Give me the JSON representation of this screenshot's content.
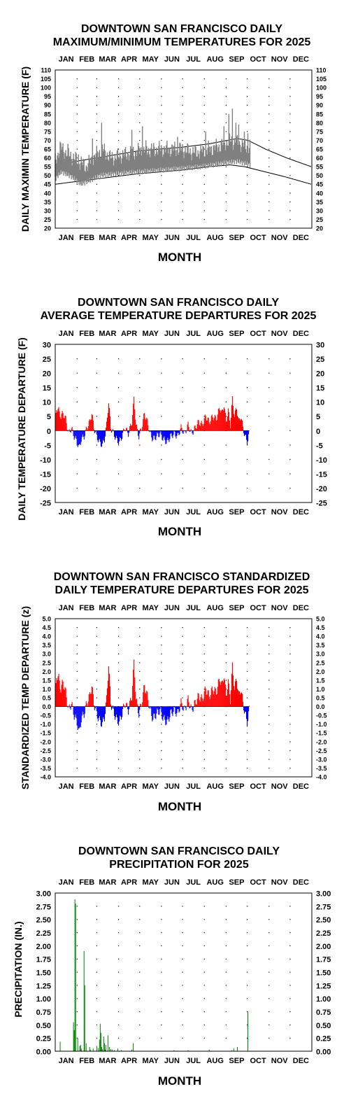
{
  "chart_data": [
    {
      "id": "maxmin",
      "type": "line",
      "title_line1": "DOWNTOWN SAN FRANCISCO DAILY",
      "title_line2": "MAXIMUM/MINIMUM TEMPERATURES FOR 2025",
      "xlabel": "MONTH",
      "ylabel": "DAILY MAXIMIN TEMPERATURE (F)",
      "months": [
        "JAN",
        "FEB",
        "MAR",
        "APR",
        "MAY",
        "JUN",
        "JUL",
        "AUG",
        "SEP",
        "OCT",
        "NOV",
        "DEC"
      ],
      "ylim": [
        20,
        110
      ],
      "yticks": [
        "110",
        "105",
        "100",
        "95",
        "90",
        "85",
        "80",
        "75",
        "70",
        "65",
        "60",
        "55",
        "50",
        "45",
        "40",
        "35",
        "30",
        "25",
        "20"
      ],
      "normal_max_anchors": [
        [
          1,
          56
        ],
        [
          60,
          60
        ],
        [
          120,
          64
        ],
        [
          180,
          66
        ],
        [
          220,
          68
        ],
        [
          260,
          71
        ],
        [
          275,
          70
        ],
        [
          300,
          65
        ],
        [
          330,
          60
        ],
        [
          365,
          55
        ]
      ],
      "normal_min_anchors": [
        [
          1,
          45
        ],
        [
          60,
          48
        ],
        [
          120,
          51
        ],
        [
          180,
          53
        ],
        [
          220,
          55
        ],
        [
          250,
          56
        ],
        [
          270,
          55
        ],
        [
          300,
          52
        ],
        [
          330,
          49
        ],
        [
          365,
          45
        ]
      ],
      "observed_max_anchors": [
        [
          1,
          58
        ],
        [
          8,
          66
        ],
        [
          20,
          62
        ],
        [
          35,
          58
        ],
        [
          45,
          55
        ],
        [
          55,
          60
        ],
        [
          68,
          65
        ],
        [
          80,
          60
        ],
        [
          100,
          62
        ],
        [
          120,
          64
        ],
        [
          150,
          65
        ],
        [
          180,
          65
        ],
        [
          200,
          63
        ],
        [
          230,
          66
        ],
        [
          250,
          70
        ],
        [
          265,
          68
        ],
        [
          278,
          66
        ]
      ],
      "observed_min_anchors": [
        [
          1,
          48
        ],
        [
          10,
          52
        ],
        [
          25,
          49
        ],
        [
          38,
          45
        ],
        [
          50,
          47
        ],
        [
          65,
          50
        ],
        [
          90,
          51
        ],
        [
          120,
          52
        ],
        [
          150,
          53
        ],
        [
          180,
          54
        ],
        [
          210,
          55
        ],
        [
          240,
          57
        ],
        [
          260,
          58
        ],
        [
          278,
          56
        ]
      ],
      "observed_spikes": [
        [
          19,
          68
        ],
        [
          34,
          62
        ],
        [
          54,
          71
        ],
        [
          67,
          80
        ],
        [
          110,
          76
        ],
        [
          125,
          78
        ],
        [
          130,
          70
        ],
        [
          175,
          72
        ],
        [
          215,
          75
        ],
        [
          241,
          78
        ],
        [
          248,
          85
        ],
        [
          253,
          88
        ],
        [
          258,
          80
        ],
        [
          262,
          79
        ],
        [
          270,
          75
        ],
        [
          275,
          74
        ]
      ],
      "observed_through_day": 278
    },
    {
      "id": "departures",
      "type": "bar",
      "title_line1": "DOWNTOWN SAN FRANCISCO DAILY",
      "title_line2": "AVERAGE TEMPERATURE DEPARTURES FOR 2025",
      "xlabel": "MONTH",
      "ylabel": "DAILY TEMPERATURE DEPARTURE (F)",
      "months": [
        "JAN",
        "FEB",
        "MAR",
        "APR",
        "MAY",
        "JUN",
        "JUL",
        "AUG",
        "SEP",
        "OCT",
        "NOV",
        "DEC"
      ],
      "ylim": [
        -25,
        30
      ],
      "yticks": [
        "30",
        "25",
        "20",
        "15",
        "10",
        "5",
        "0",
        "-5",
        "-10",
        "-15",
        "-20",
        "-25"
      ],
      "positive_color": "#ff0000",
      "negative_color": "#0000ff",
      "anchors": [
        [
          1,
          3
        ],
        [
          3,
          8
        ],
        [
          6,
          7
        ],
        [
          9,
          5
        ],
        [
          12,
          6
        ],
        [
          16,
          4
        ],
        [
          20,
          -1
        ],
        [
          24,
          1
        ],
        [
          28,
          -2
        ],
        [
          32,
          -4
        ],
        [
          35,
          -6
        ],
        [
          38,
          -3
        ],
        [
          42,
          -2
        ],
        [
          46,
          1
        ],
        [
          50,
          3
        ],
        [
          53,
          6
        ],
        [
          56,
          1
        ],
        [
          60,
          -2
        ],
        [
          64,
          -4
        ],
        [
          68,
          -5
        ],
        [
          71,
          -3
        ],
        [
          74,
          2
        ],
        [
          77,
          10
        ],
        [
          80,
          1
        ],
        [
          84,
          -1
        ],
        [
          88,
          -3
        ],
        [
          92,
          -4
        ],
        [
          96,
          -2
        ],
        [
          100,
          1
        ],
        [
          105,
          -1
        ],
        [
          110,
          3
        ],
        [
          113,
          11
        ],
        [
          116,
          2
        ],
        [
          120,
          -2
        ],
        [
          124,
          1
        ],
        [
          128,
          6
        ],
        [
          132,
          3
        ],
        [
          136,
          -1
        ],
        [
          140,
          -3
        ],
        [
          145,
          -2
        ],
        [
          150,
          -1
        ],
        [
          155,
          -3
        ],
        [
          160,
          -4
        ],
        [
          165,
          -2
        ],
        [
          170,
          -1
        ],
        [
          175,
          -2
        ],
        [
          180,
          1
        ],
        [
          185,
          -1
        ],
        [
          190,
          2
        ],
        [
          195,
          -1
        ],
        [
          200,
          1
        ],
        [
          205,
          3
        ],
        [
          210,
          2
        ],
        [
          215,
          5
        ],
        [
          220,
          3
        ],
        [
          225,
          5
        ],
        [
          230,
          4
        ],
        [
          235,
          8
        ],
        [
          238,
          6
        ],
        [
          241,
          9
        ],
        [
          244,
          3
        ],
        [
          247,
          7
        ],
        [
          250,
          2
        ],
        [
          253,
          11
        ],
        [
          256,
          5
        ],
        [
          259,
          8
        ],
        [
          262,
          3
        ],
        [
          265,
          5
        ],
        [
          268,
          1
        ],
        [
          271,
          -2
        ],
        [
          274,
          -4
        ],
        [
          277,
          -1
        ]
      ]
    },
    {
      "id": "standardized",
      "type": "bar",
      "title_line1": "DOWNTOWN SAN FRANCISCO STANDARDIZED",
      "title_line2": "DAILY TEMPERATURE DEPARTURES FOR 2025",
      "xlabel": "MONTH",
      "ylabel": "STANDARDIZED TEMP DEPARTURE (z)",
      "months": [
        "JAN",
        "FEB",
        "MAR",
        "APR",
        "MAY",
        "JUN",
        "JUL",
        "AUG",
        "SEP",
        "OCT",
        "NOV",
        "DEC"
      ],
      "ylim": [
        -4.0,
        5.0
      ],
      "yticks": [
        "5.0",
        "4.5",
        "4.0",
        "3.5",
        "3.0",
        "2.5",
        "2.0",
        "1.5",
        "1.0",
        "0.5",
        "0.0",
        "-0.5",
        "-1.0",
        "-1.5",
        "-2.0",
        "-2.5",
        "-3.0",
        "-3.5",
        "-4.0"
      ],
      "positive_color": "#ff0000",
      "negative_color": "#0000ff",
      "anchors": [
        [
          1,
          0.6
        ],
        [
          3,
          1.8
        ],
        [
          6,
          1.6
        ],
        [
          9,
          1.0
        ],
        [
          12,
          1.4
        ],
        [
          16,
          0.8
        ],
        [
          20,
          -0.2
        ],
        [
          24,
          0.2
        ],
        [
          28,
          -0.5
        ],
        [
          32,
          -0.9
        ],
        [
          35,
          -1.5
        ],
        [
          38,
          -0.7
        ],
        [
          42,
          -0.4
        ],
        [
          46,
          0.2
        ],
        [
          50,
          0.6
        ],
        [
          53,
          1.2
        ],
        [
          56,
          0.2
        ],
        [
          60,
          -0.4
        ],
        [
          64,
          -0.8
        ],
        [
          68,
          -1.0
        ],
        [
          71,
          -0.6
        ],
        [
          74,
          0.4
        ],
        [
          77,
          2.4
        ],
        [
          80,
          0.2
        ],
        [
          84,
          -0.3
        ],
        [
          88,
          -0.7
        ],
        [
          92,
          -0.9
        ],
        [
          96,
          -0.4
        ],
        [
          100,
          0.2
        ],
        [
          105,
          -0.2
        ],
        [
          110,
          0.6
        ],
        [
          113,
          2.5
        ],
        [
          116,
          0.4
        ],
        [
          120,
          -0.4
        ],
        [
          124,
          0.2
        ],
        [
          128,
          1.2
        ],
        [
          132,
          0.6
        ],
        [
          136,
          -0.2
        ],
        [
          140,
          -0.7
        ],
        [
          145,
          -0.4
        ],
        [
          150,
          -0.2
        ],
        [
          155,
          -0.7
        ],
        [
          160,
          -0.9
        ],
        [
          165,
          -0.4
        ],
        [
          170,
          -0.2
        ],
        [
          175,
          -0.4
        ],
        [
          180,
          0.2
        ],
        [
          185,
          -0.2
        ],
        [
          190,
          0.4
        ],
        [
          195,
          -0.2
        ],
        [
          200,
          0.2
        ],
        [
          205,
          0.6
        ],
        [
          210,
          0.4
        ],
        [
          215,
          1.0
        ],
        [
          220,
          0.6
        ],
        [
          225,
          1.0
        ],
        [
          230,
          0.8
        ],
        [
          235,
          1.6
        ],
        [
          238,
          1.2
        ],
        [
          241,
          1.8
        ],
        [
          244,
          0.6
        ],
        [
          247,
          1.4
        ],
        [
          250,
          0.4
        ],
        [
          253,
          2.3
        ],
        [
          256,
          1.0
        ],
        [
          259,
          1.6
        ],
        [
          262,
          0.6
        ],
        [
          265,
          1.0
        ],
        [
          268,
          0.2
        ],
        [
          271,
          -0.4
        ],
        [
          274,
          -0.9
        ],
        [
          277,
          -0.2
        ]
      ]
    },
    {
      "id": "precipitation",
      "type": "bar",
      "title_line1": "DOWNTOWN SAN FRANCISCO DAILY",
      "title_line2": "PRECIPITATION FOR 2025",
      "xlabel": "MONTH",
      "ylabel": "PRECIPITATION (IN.)",
      "months": [
        "JAN",
        "FEB",
        "MAR",
        "APR",
        "MAY",
        "JUN",
        "JUL",
        "AUG",
        "SEP",
        "OCT",
        "NOV",
        "DEC"
      ],
      "ylim": [
        0.0,
        3.0
      ],
      "yticks": [
        "3.00",
        "2.75",
        "2.50",
        "2.25",
        "2.00",
        "1.75",
        "1.50",
        "1.25",
        "1.00",
        "0.75",
        "0.50",
        "0.25",
        "0.00"
      ],
      "bar_color": "#008000",
      "days": [
        8,
        27,
        28,
        29,
        30,
        33,
        36,
        37,
        38,
        42,
        43,
        45,
        50,
        51,
        55,
        60,
        62,
        64,
        65,
        66,
        67,
        68,
        70,
        71,
        72,
        73,
        76,
        78,
        80,
        82,
        85,
        90,
        95,
        110,
        112,
        170,
        175,
        190,
        220,
        252,
        255,
        260,
        275
      ],
      "values": [
        0.18,
        0.55,
        0.4,
        2.88,
        2.8,
        0.25,
        0.1,
        0.12,
        0.05,
        1.9,
        1.25,
        0.15,
        0.08,
        0.03,
        0.05,
        0.1,
        0.06,
        0.22,
        0.52,
        0.35,
        0.08,
        0.04,
        0.28,
        0.15,
        0.03,
        0.12,
        0.3,
        0.08,
        0.04,
        0.03,
        0.02,
        0.05,
        0.02,
        0.03,
        0.15,
        0.02,
        0.01,
        0.02,
        0.03,
        0.02,
        0.05,
        0.08,
        0.75
      ]
    }
  ]
}
